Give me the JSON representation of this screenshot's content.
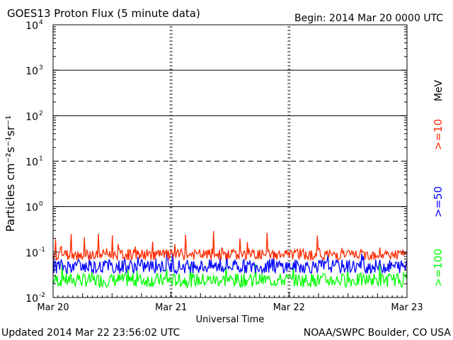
{
  "chart_data": {
    "type": "line",
    "title": "GOES13 Proton Flux (5 minute data)",
    "begin_label": "Begin: 2014 Mar 20 0000 UTC",
    "xlabel": "Universal Time",
    "ylabel": "Particles cm⁻²s⁻¹sr⁻¹",
    "yscale": "log",
    "ylim": [
      0.01,
      10000
    ],
    "y_ticks": [
      {
        "base": "10",
        "exp": "-2",
        "value": 0.01
      },
      {
        "base": "10",
        "exp": "-1",
        "value": 0.1
      },
      {
        "base": "10",
        "exp": "0",
        "value": 1
      },
      {
        "base": "10",
        "exp": "1",
        "value": 10
      },
      {
        "base": "10",
        "exp": "2",
        "value": 100
      },
      {
        "base": "10",
        "exp": "3",
        "value": 1000
      },
      {
        "base": "10",
        "exp": "4",
        "value": 10000
      }
    ],
    "x_ticks": [
      "Mar 20",
      "Mar 21",
      "Mar 22",
      "Mar 23"
    ],
    "xlim": [
      "2014-03-20",
      "2014-03-23"
    ],
    "units_label": "MeV",
    "series": [
      {
        "name": ">=10",
        "color": "#ff2a00",
        "typical": 0.09,
        "min": 0.06,
        "max": 0.3
      },
      {
        "name": ">=50",
        "color": "#0000ff",
        "typical": 0.05,
        "min": 0.03,
        "max": 0.1
      },
      {
        "name": ">=100",
        "color": "#00ff00",
        "typical": 0.025,
        "min": 0.015,
        "max": 0.06
      }
    ],
    "threshold_lines": [
      1,
      10,
      100,
      1000
    ],
    "grid": true
  },
  "footer": {
    "updated": "Updated 2014 Mar 22 23:56:02 UTC",
    "credit": "NOAA/SWPC Boulder, CO USA"
  }
}
